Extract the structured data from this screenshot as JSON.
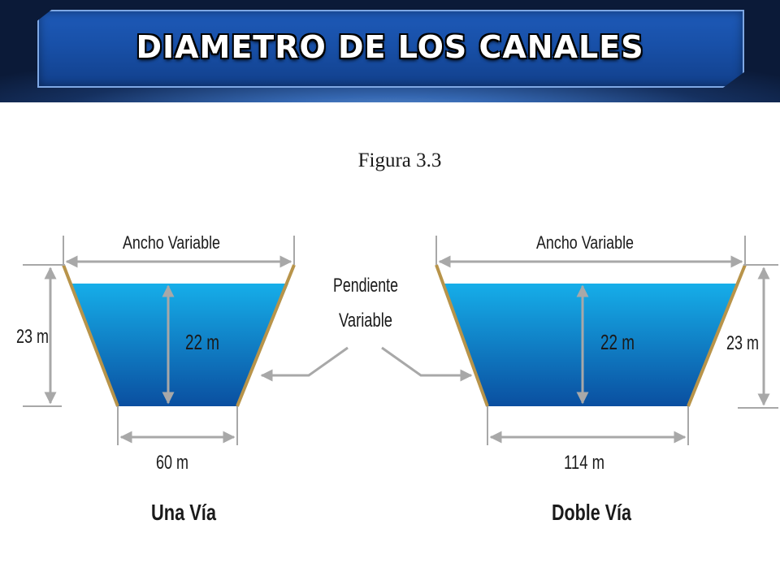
{
  "header": {
    "title": "DIAMETRO DE LOS CANALES"
  },
  "figure": {
    "caption": "Figura 3.3",
    "slope_label": [
      "Pendiente",
      "Variable"
    ],
    "left_canal": {
      "name": "Una Vía",
      "top_width_label": "Ancho Variable",
      "total_height_label": "23 m",
      "water_depth_label": "22 m",
      "bottom_width_label": "60 m"
    },
    "right_canal": {
      "name": "Doble Vía",
      "top_width_label": "Ancho Variable",
      "total_height_label": "23 m",
      "water_depth_label": "22 m",
      "bottom_width_label": "114 m"
    },
    "colors": {
      "water_top": "#16aee9",
      "water_bottom": "#0a4fa0",
      "bank": "#b8944a",
      "arrow": "#a8a8a8"
    }
  }
}
